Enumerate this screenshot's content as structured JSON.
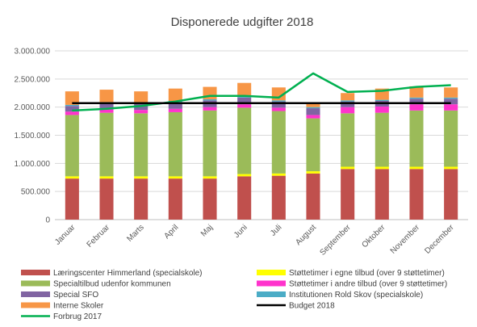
{
  "chart_data": {
    "type": "bar",
    "stacked": true,
    "title": "Disponerede udgifter 2018",
    "categories": [
      "Januar",
      "Februar",
      "Marts",
      "April",
      "Maj",
      "Juni",
      "Juli",
      "August",
      "September",
      "Oktober",
      "November",
      "December"
    ],
    "y_ticks": [
      "0",
      "500.000",
      "1.000.000",
      "1.500.000",
      "2.000.000",
      "2.500.000",
      "3.000.000"
    ],
    "ylim": [
      0,
      3000000
    ],
    "grid": true,
    "legend_position": "bottom",
    "series": [
      {
        "name": "Læringscenter Himmerland (specialskole)",
        "color": "#c0504d",
        "type": "bar",
        "values": [
          730000,
          730000,
          730000,
          730000,
          730000,
          770000,
          780000,
          820000,
          900000,
          900000,
          900000,
          900000
        ]
      },
      {
        "name": "Støttetimer i egne tilbud (over 9 støttetimer)",
        "color": "#ffff00",
        "type": "bar",
        "values": [
          40000,
          40000,
          40000,
          40000,
          40000,
          40000,
          40000,
          40000,
          40000,
          40000,
          40000,
          40000
        ]
      },
      {
        "name": "Specialtilbud udenfor kommunen",
        "color": "#9bbb59",
        "type": "bar",
        "values": [
          1090000,
          1130000,
          1120000,
          1140000,
          1170000,
          1180000,
          1110000,
          940000,
          950000,
          960000,
          1000000,
          1000000
        ]
      },
      {
        "name": "Støttetimer i andre tilbud (over 9 støttetimer)",
        "color": "#ff33cc",
        "type": "bar",
        "values": [
          60000,
          60000,
          60000,
          60000,
          60000,
          60000,
          60000,
          60000,
          110000,
          110000,
          110000,
          110000
        ]
      },
      {
        "name": "Special SFO",
        "color": "#8064a2",
        "type": "bar",
        "values": [
          100000,
          110000,
          110000,
          120000,
          120000,
          120000,
          110000,
          120000,
          100000,
          100000,
          100000,
          100000
        ]
      },
      {
        "name": "Institutionen Rold Skov (specialskole)",
        "color": "#4bacc6",
        "type": "bar",
        "values": [
          20000,
          20000,
          20000,
          20000,
          20000,
          20000,
          20000,
          20000,
          20000,
          20000,
          20000,
          20000
        ]
      },
      {
        "name": "Interne Skoler",
        "color": "#f79646",
        "type": "bar",
        "values": [
          240000,
          220000,
          200000,
          220000,
          220000,
          240000,
          230000,
          80000,
          130000,
          200000,
          200000,
          180000
        ]
      },
      {
        "name": "Forbrug 2017",
        "color": "#00b050",
        "type": "line",
        "values": [
          1940000,
          1970000,
          2020000,
          2100000,
          2200000,
          2200000,
          2170000,
          2600000,
          2270000,
          2290000,
          2360000,
          2390000
        ]
      },
      {
        "name": "Budget 2018",
        "color": "#000000",
        "type": "line",
        "values": [
          2070000,
          2070000,
          2070000,
          2070000,
          2070000,
          2070000,
          2070000,
          2070000,
          2070000,
          2070000,
          2070000,
          2070000
        ]
      }
    ],
    "legend_order": [
      [
        "Læringscenter Himmerland (specialskole)",
        "Støttetimer i egne tilbud (over 9 støttetimer)"
      ],
      [
        "Specialtilbud udenfor kommunen",
        "Støttetimer i andre tilbud (over 9 støttetimer)"
      ],
      [
        "Special SFO",
        "Institutionen Rold Skov (specialskole)"
      ],
      [
        "Interne Skoler",
        "Budget 2018"
      ],
      [
        "Forbrug 2017",
        ""
      ]
    ]
  }
}
